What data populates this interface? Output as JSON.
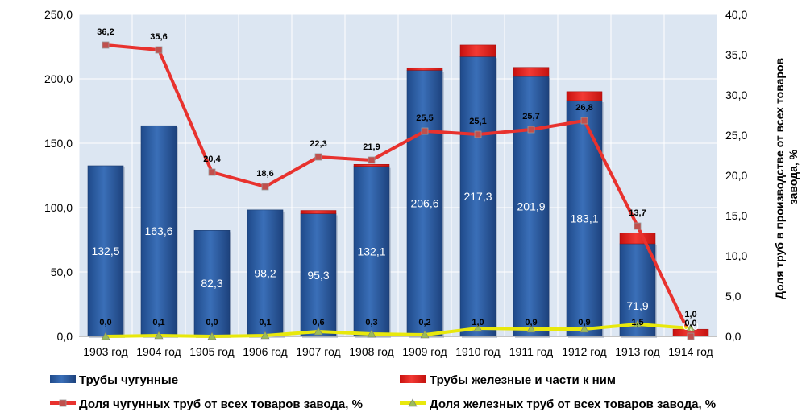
{
  "chart_data": {
    "type": "bar",
    "categories": [
      "1903 год",
      "1904 год",
      "1905 год",
      "1906 год",
      "1907 год",
      "1908 год",
      "1909 год",
      "1910 год",
      "1911 год",
      "1912 год",
      "1913 год",
      "1914 год"
    ],
    "series": [
      {
        "name": "Трубы чугунные",
        "kind": "bar",
        "axis": "left",
        "color": "#2e5a9c",
        "values": [
          132.5,
          163.6,
          82.3,
          98.2,
          95.3,
          132.1,
          206.6,
          217.3,
          201.9,
          183.1,
          71.9,
          0.0
        ]
      },
      {
        "name": "Трубы железные и части к ним",
        "kind": "bar",
        "axis": "left",
        "color": "#e8211d",
        "values": [
          0.0,
          0.1,
          0.0,
          0.1,
          2.5,
          1.5,
          2.0,
          9.0,
          7.0,
          7.0,
          8.5,
          5.5
        ]
      },
      {
        "name": "Доля чугунных труб от всех товаров завода, %",
        "kind": "line",
        "axis": "right",
        "color": "#e8322e",
        "values": [
          36.2,
          35.6,
          20.4,
          18.6,
          22.3,
          21.9,
          25.5,
          25.1,
          25.7,
          26.8,
          13.7,
          0.0
        ]
      },
      {
        "name": "Доля железных труб от всех товаров завода, %",
        "kind": "line",
        "axis": "right",
        "color": "#e8e80c",
        "values": [
          0.0,
          0.1,
          0.0,
          0.1,
          0.6,
          0.3,
          0.2,
          1.0,
          0.9,
          0.9,
          1.5,
          1.0
        ]
      }
    ],
    "bar_labels": [
      "132,5",
      "163,6",
      "82,3",
      "98,2",
      "95,3",
      "132,1",
      "206,6",
      "217,3",
      "201,9",
      "183,1",
      "71,9",
      "0,0"
    ],
    "cast_pct_labels": [
      "36,2",
      "35,6",
      "20,4",
      "18,6",
      "22,3",
      "21,9",
      "25,5",
      "25,1",
      "25,7",
      "26,8",
      "13,7",
      "0,0"
    ],
    "iron_pct_labels": [
      "0,0",
      "0,1",
      "0,0",
      "0,1",
      "0,6",
      "0,3",
      "0,2",
      "1,0",
      "0,9",
      "0,9",
      "1,5",
      "1,0"
    ],
    "y_left": {
      "ylim": [
        0,
        250
      ],
      "ticks": [
        "0,0",
        "50,0",
        "100,0",
        "150,0",
        "200,0",
        "250,0"
      ],
      "label": ""
    },
    "y_right": {
      "ylim": [
        0,
        40
      ],
      "ticks": [
        "0,0",
        "5,0",
        "10,0",
        "15,0",
        "20,0",
        "25,0",
        "30,0",
        "35,0",
        "40,0"
      ],
      "label_line1": "Доля труб в производстве от всех товаров",
      "label_line2": "завода, %"
    },
    "grid": true,
    "legend_position": "bottom",
    "colors": {
      "plot_bg": "#dce6f2",
      "grid": "#ffffff",
      "bar_blue": "#2e5a9c",
      "bar_red": "#e8211d",
      "line_red": "#e8322e",
      "line_yellow": "#e8e80c"
    }
  }
}
